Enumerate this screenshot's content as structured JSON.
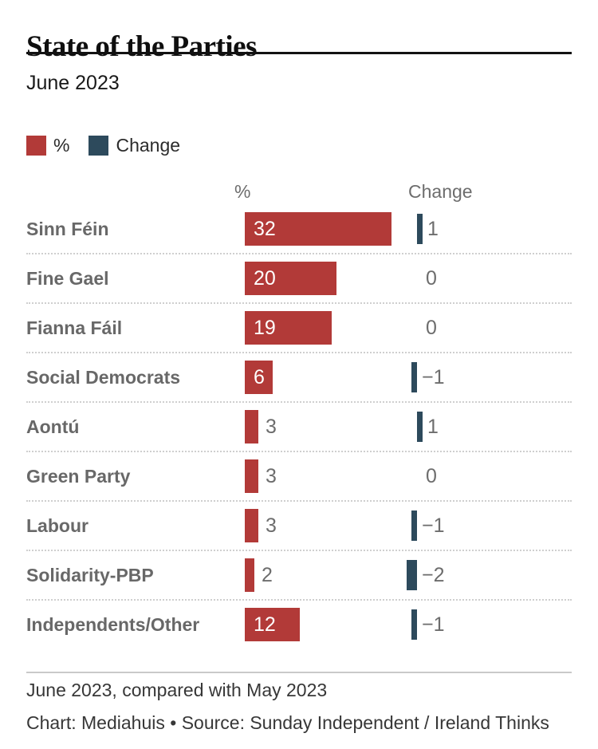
{
  "title": "State of the Parties",
  "subtitle": "June 2023",
  "legend": {
    "pct_label": "%",
    "change_label": "Change"
  },
  "columns": {
    "pct": "%",
    "change": "Change"
  },
  "colors": {
    "pct_bar": "#b23a38",
    "change_bar": "#2d4a5c"
  },
  "rows": [
    {
      "party": "Sinn Féin",
      "pct": 32,
      "change": 1,
      "pct_label": "32",
      "change_label": "1"
    },
    {
      "party": "Fine Gael",
      "pct": 20,
      "change": 0,
      "pct_label": "20",
      "change_label": "0"
    },
    {
      "party": "Fianna Fáil",
      "pct": 19,
      "change": 0,
      "pct_label": "19",
      "change_label": "0"
    },
    {
      "party": "Social Democrats",
      "pct": 6,
      "change": -1,
      "pct_label": "6",
      "change_label": "−1"
    },
    {
      "party": "Aontú",
      "pct": 3,
      "change": 1,
      "pct_label": "3",
      "change_label": "1"
    },
    {
      "party": "Green Party",
      "pct": 3,
      "change": 0,
      "pct_label": "3",
      "change_label": "0"
    },
    {
      "party": "Labour",
      "pct": 3,
      "change": -1,
      "pct_label": "3",
      "change_label": "−1"
    },
    {
      "party": "Solidarity-PBP",
      "pct": 2,
      "change": -2,
      "pct_label": "2",
      "change_label": "−2"
    },
    {
      "party": "Independents/Other",
      "pct": 12,
      "change": -1,
      "pct_label": "12",
      "change_label": "−1"
    }
  ],
  "footer": {
    "note": "June 2023, compared with May 2023",
    "byline": "Chart: Mediahuis • Source: Sunday Independent / Ireland Thinks"
  },
  "chart_data": {
    "type": "bar",
    "orientation": "horizontal",
    "categories": [
      "Sinn Féin",
      "Fine Gael",
      "Fianna Fáil",
      "Social Democrats",
      "Aontú",
      "Green Party",
      "Labour",
      "Solidarity-PBP",
      "Independents/Other"
    ],
    "series": [
      {
        "name": "%",
        "values": [
          32,
          20,
          19,
          6,
          3,
          3,
          3,
          2,
          12
        ]
      },
      {
        "name": "Change",
        "values": [
          1,
          0,
          0,
          -1,
          1,
          0,
          -1,
          -2,
          -1
        ]
      }
    ],
    "title": "State of the Parties",
    "subtitle": "June 2023",
    "note": "June 2023, compared with May 2023",
    "source": "Chart: Mediahuis • Source: Sunday Independent / Ireland Thinks",
    "legend_entries": [
      "%",
      "Change"
    ],
    "legend_position": "top-left",
    "grid": false,
    "value_labels": true,
    "colors": {
      "%": "#b23a38",
      "Change": "#2d4a5c"
    }
  }
}
